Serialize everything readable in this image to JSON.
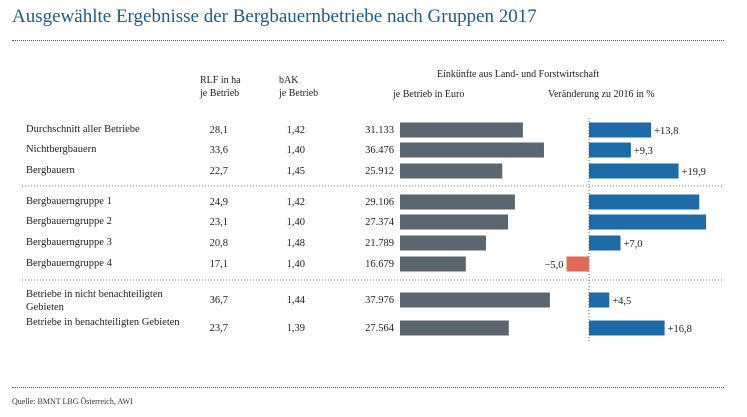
{
  "title": "Ausgewählte Ergebnisse der Bergbauernbetriebe nach Gruppen 2017",
  "headers": {
    "rlf_line1": "RLF in ha",
    "rlf_line2": "je Betrieb",
    "bak_line1": "bAK",
    "bak_line2": "je Betrieb",
    "einkuenfte": "Einkünfte aus Land- und Forstwirtschaft",
    "je_betrieb_euro": "je Betrieb in Euro",
    "veraenderung": "Veränderung zu 2016 in %"
  },
  "source": "Quelle: BMNT LBG Österreich, AWI",
  "colors": {
    "bar": "#5a6670",
    "pos": "#1d6aa8",
    "neg": "#e06a55",
    "title": "#1e5a8c"
  },
  "chart_data": {
    "type": "bar",
    "title": "Ausgewählte Ergebnisse der Bergbauernbetriebe nach Gruppen 2017",
    "categories": [
      "Durchschnitt aller Betriebe",
      "Nichtbergbauern",
      "Bergbauern",
      "Bergbauerngruppe 1",
      "Bergbauerngruppe 2",
      "Bergbauerngruppe 3",
      "Bergbauerngruppe 4",
      "Betriebe in nicht benachteiligten Gebieten",
      "Betriebe in benachteiligten Gebieten"
    ],
    "rows": [
      {
        "label": "Durchschnitt aller Betriebe",
        "rlf": "28,1",
        "bak": "1,42",
        "euro_label": "31.133",
        "euro": 31133,
        "change": 13.8,
        "change_label": "+13,8"
      },
      {
        "label": "Nichtbergbauern",
        "rlf": "33,6",
        "bak": "1,40",
        "euro_label": "36.476",
        "euro": 36476,
        "change": 9.3,
        "change_label": "+9,3"
      },
      {
        "label": "Bergbauern",
        "rlf": "22,7",
        "bak": "1,45",
        "euro_label": "25.912",
        "euro": 25912,
        "change": 19.9,
        "change_label": "+19,9"
      },
      {
        "label": "Bergbauerngruppe 1",
        "rlf": "24,9",
        "bak": "1,42",
        "euro_label": "29.106",
        "euro": 29106,
        "change": 24.5,
        "change_label": ""
      },
      {
        "label": "Bergbauerngruppe 2",
        "rlf": "23,1",
        "bak": "1,40",
        "euro_label": "27.374",
        "euro": 27374,
        "change": 26.0,
        "change_label": ""
      },
      {
        "label": "Bergbauerngruppe 3",
        "rlf": "20,8",
        "bak": "1,48",
        "euro_label": "21.789",
        "euro": 21789,
        "change": 7.0,
        "change_label": "+7,0"
      },
      {
        "label": "Bergbauerngruppe 4",
        "rlf": "17,1",
        "bak": "1,40",
        "euro_label": "16.679",
        "euro": 16679,
        "change": -5.0,
        "change_label": "−5,0"
      },
      {
        "label": "Betriebe in nicht benachteiligten Gebieten",
        "rlf": "36,7",
        "bak": "1,44",
        "euro_label": "37.976",
        "euro": 37976,
        "change": 4.5,
        "change_label": "+4,5"
      },
      {
        "label": "Betriebe in benachteiligten Gebieten",
        "rlf": "23,7",
        "bak": "1,39",
        "euro_label": "27.564",
        "euro": 27564,
        "change": 16.8,
        "change_label": "+16,8"
      }
    ],
    "series": [
      {
        "name": "Einkünfte je Betrieb in Euro",
        "values": [
          31133,
          36476,
          25912,
          29106,
          27374,
          21789,
          16679,
          37976,
          27564
        ]
      },
      {
        "name": "Veränderung zu 2016 in %",
        "values": [
          13.8,
          9.3,
          19.9,
          24.5,
          26.0,
          7.0,
          -5.0,
          4.5,
          16.8
        ]
      }
    ]
  }
}
